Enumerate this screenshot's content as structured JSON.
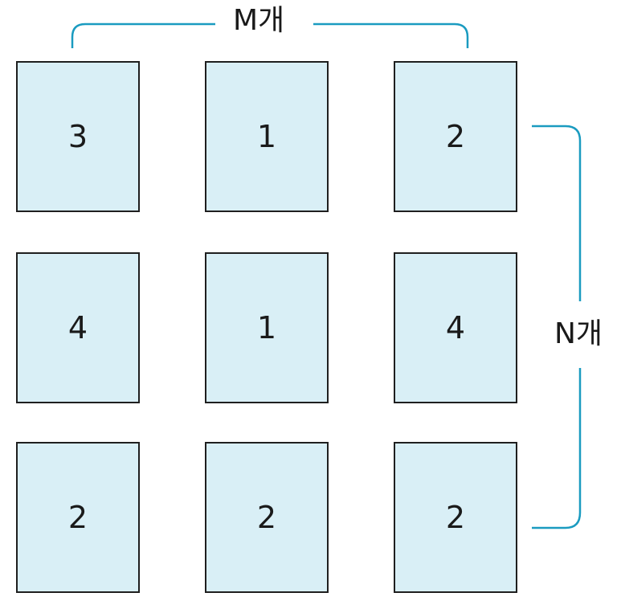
{
  "grid": {
    "rows": [
      [
        "3",
        "1",
        "2"
      ],
      [
        "4",
        "1",
        "4"
      ],
      [
        "2",
        "2",
        "2"
      ]
    ]
  },
  "labels": {
    "columns": "M개",
    "rows": "N개"
  },
  "colors": {
    "card_fill": "#d9eff6",
    "card_border": "#1f1f1f",
    "bracket": "#1a9bc0"
  }
}
